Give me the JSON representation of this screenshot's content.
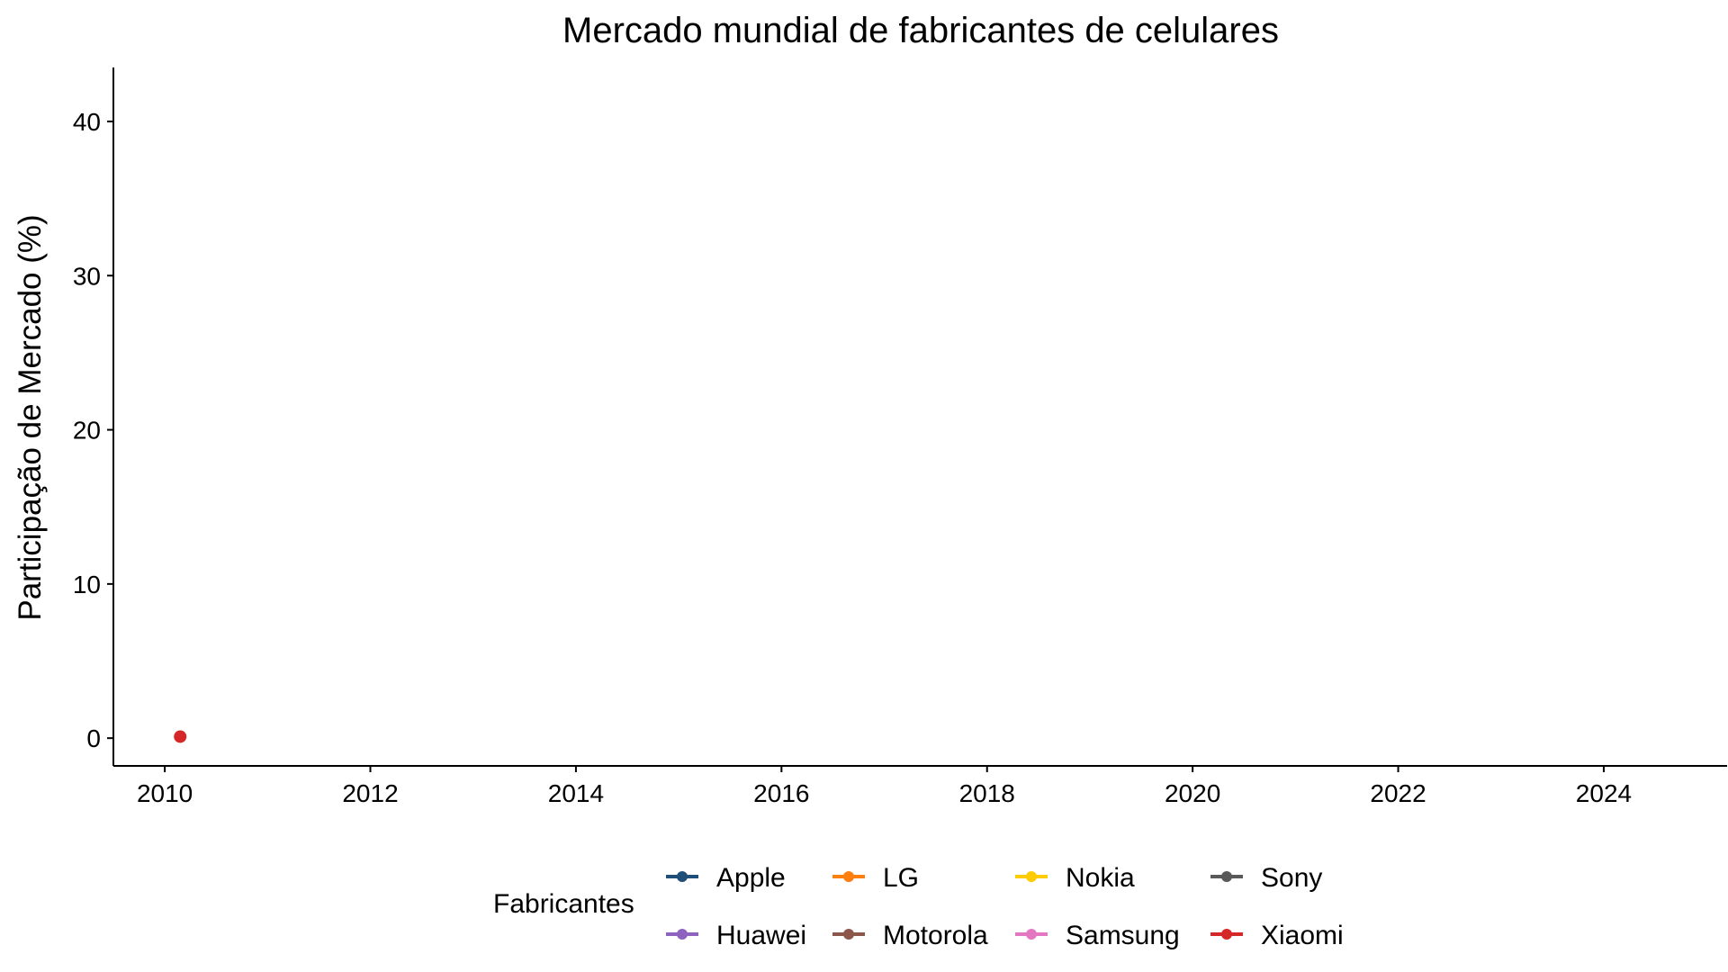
{
  "chart_data": {
    "type": "line",
    "title": "Mercado mundial de fabricantes de celulares",
    "xlabel": "",
    "ylabel": "Participação de Mercado (%)",
    "xlim": [
      2009.5,
      2025.2
    ],
    "ylim": [
      -1.8,
      43.5
    ],
    "x_ticks": [
      2010,
      2012,
      2014,
      2016,
      2018,
      2020,
      2022,
      2024
    ],
    "y_ticks": [
      0,
      10,
      20,
      30,
      40
    ],
    "grid": false,
    "legend": {
      "title": "Fabricantes",
      "position": "bottom",
      "columns": 4
    },
    "series": [
      {
        "name": "Apple",
        "color": "#1f4e79",
        "points": []
      },
      {
        "name": "Huawei",
        "color": "#8e63c0",
        "points": []
      },
      {
        "name": "LG",
        "color": "#ff7f0e",
        "points": []
      },
      {
        "name": "Motorola",
        "color": "#8c564b",
        "points": []
      },
      {
        "name": "Nokia",
        "color": "#ffcc00",
        "points": []
      },
      {
        "name": "Samsung",
        "color": "#e377c2",
        "points": []
      },
      {
        "name": "Sony",
        "color": "#595959",
        "points": []
      },
      {
        "name": "Xiaomi",
        "color": "#d62728",
        "points": [
          {
            "x": 2010.15,
            "y": 0.1
          }
        ]
      }
    ]
  }
}
